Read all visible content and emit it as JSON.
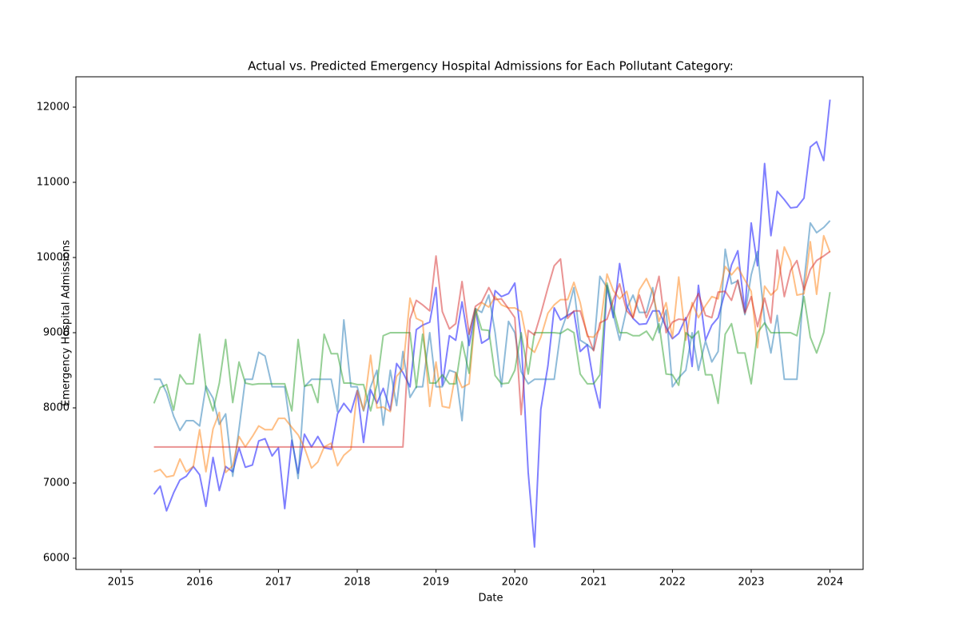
{
  "chart_data": {
    "type": "line",
    "title": "Actual vs. Predicted Emergency Hospital Admissions for Each Pollutant Category:",
    "xlabel": "Date",
    "ylabel": "Emergency Hospital Admissions",
    "x": [
      2015.42,
      2015.5,
      2015.58,
      2015.67,
      2015.75,
      2015.83,
      2015.92,
      2016,
      2016.08,
      2016.17,
      2016.25,
      2016.33,
      2016.42,
      2016.5,
      2016.58,
      2016.67,
      2016.75,
      2016.83,
      2016.92,
      2017,
      2017.08,
      2017.17,
      2017.25,
      2017.33,
      2017.42,
      2017.5,
      2017.58,
      2017.67,
      2017.75,
      2017.83,
      2017.92,
      2018,
      2018.08,
      2018.17,
      2018.25,
      2018.33,
      2018.42,
      2018.5,
      2018.58,
      2018.67,
      2018.75,
      2018.83,
      2018.92,
      2019,
      2019.08,
      2019.17,
      2019.25,
      2019.33,
      2019.42,
      2019.5,
      2019.58,
      2019.67,
      2019.75,
      2019.83,
      2019.92,
      2020,
      2020.08,
      2020.17,
      2020.25,
      2020.33,
      2020.42,
      2020.5,
      2020.58,
      2020.67,
      2020.75,
      2020.83,
      2020.92,
      2021,
      2021.08,
      2021.17,
      2021.25,
      2021.33,
      2021.42,
      2021.5,
      2021.58,
      2021.67,
      2021.75,
      2021.83,
      2021.92,
      2022,
      2022.08,
      2022.17,
      2022.25,
      2022.33,
      2022.42,
      2022.5,
      2022.58,
      2022.67,
      2022.75,
      2022.83,
      2022.92,
      2023,
      2023.08,
      2023.17,
      2023.25,
      2023.33,
      2023.42,
      2023.5,
      2023.58,
      2023.67,
      2023.75,
      2023.83,
      2023.92,
      2024
    ],
    "alpha": 0.5,
    "series": [
      {
        "color": "#0000ff",
        "values": [
          6850,
          6960,
          6630,
          6870,
          7040,
          7090,
          7220,
          7110,
          6690,
          7340,
          6900,
          7220,
          7150,
          7470,
          7210,
          7240,
          7560,
          7590,
          7360,
          7470,
          6660,
          7570,
          7130,
          7650,
          7480,
          7620,
          7470,
          7450,
          7920,
          8060,
          7940,
          8230,
          7540,
          8240,
          8060,
          8260,
          7970,
          8590,
          8470,
          8280,
          9040,
          9100,
          9140,
          9600,
          8300,
          8960,
          8900,
          9410,
          8830,
          9300,
          8860,
          8920,
          9560,
          9480,
          9520,
          9660,
          8930,
          7140,
          6150,
          7980,
          8560,
          9330,
          9170,
          9230,
          9280,
          8750,
          8840,
          8340,
          8000,
          9630,
          9200,
          9920,
          9360,
          9190,
          9110,
          9120,
          9290,
          9290,
          9070,
          8920,
          8990,
          9200,
          8550,
          9630,
          8900,
          9100,
          9200,
          9550,
          9900,
          10090,
          9280,
          10460,
          9890,
          11250,
          10290,
          10880,
          10770,
          10660,
          10670,
          10790,
          11470,
          11540,
          11290,
          12100
        ]
      },
      {
        "color": "#1f77b4",
        "values": [
          8380,
          8380,
          8200,
          7890,
          7700,
          7830,
          7830,
          7760,
          8290,
          8130,
          7780,
          7920,
          7090,
          7720,
          8380,
          8380,
          8740,
          8690,
          8280,
          8280,
          8280,
          7600,
          7060,
          8280,
          8380,
          8380,
          8380,
          8380,
          7950,
          9170,
          8280,
          8280,
          7960,
          8280,
          8500,
          7770,
          8500,
          8030,
          8750,
          8140,
          8280,
          8280,
          9000,
          8280,
          8280,
          8500,
          8470,
          7830,
          9000,
          9320,
          9270,
          9500,
          9000,
          8280,
          9150,
          9000,
          8480,
          8320,
          8380,
          8380,
          8380,
          8380,
          9000,
          9270,
          9600,
          8900,
          8840,
          8770,
          9750,
          9600,
          9240,
          8900,
          9320,
          9500,
          9270,
          9270,
          9600,
          9000,
          9300,
          8280,
          8400,
          8500,
          9000,
          8500,
          8890,
          8610,
          8750,
          10110,
          9650,
          9690,
          9240,
          9770,
          10080,
          9160,
          8730,
          9230,
          8380,
          8380,
          8380,
          9670,
          10460,
          10330,
          10400,
          10490
        ]
      },
      {
        "color": "#ff7f0e",
        "values": [
          7150,
          7180,
          7080,
          7100,
          7320,
          7150,
          7220,
          7710,
          7150,
          7720,
          7940,
          7140,
          7230,
          7620,
          7480,
          7620,
          7760,
          7710,
          7710,
          7860,
          7860,
          7740,
          7640,
          7470,
          7200,
          7280,
          7480,
          7530,
          7230,
          7370,
          7450,
          8230,
          7970,
          8700,
          8000,
          8010,
          7950,
          8420,
          8520,
          9460,
          9190,
          9150,
          8020,
          8610,
          8020,
          8000,
          8470,
          8270,
          8320,
          9250,
          9400,
          9340,
          9480,
          9370,
          9330,
          9330,
          9280,
          8810,
          8740,
          8940,
          9260,
          9370,
          9440,
          9440,
          9670,
          9400,
          8950,
          8940,
          9050,
          9780,
          9560,
          9450,
          9550,
          9200,
          9570,
          9720,
          9530,
          9150,
          9400,
          8930,
          9740,
          8900,
          9400,
          9200,
          9360,
          9480,
          9450,
          9880,
          9770,
          9870,
          9700,
          9550,
          8800,
          9620,
          9500,
          9580,
          10140,
          9950,
          9500,
          9520,
          10210,
          9510,
          10290,
          10070
        ]
      },
      {
        "color": "#2ca02c",
        "values": [
          8060,
          8270,
          8310,
          7970,
          8440,
          8320,
          8320,
          8980,
          8260,
          7960,
          8330,
          8910,
          8070,
          8610,
          8330,
          8310,
          8320,
          8320,
          8320,
          8320,
          8320,
          7960,
          8910,
          8290,
          8310,
          8070,
          8980,
          8720,
          8720,
          8330,
          8330,
          8310,
          8310,
          7960,
          8310,
          8960,
          9000,
          9000,
          9000,
          9000,
          8270,
          8980,
          8330,
          8330,
          8440,
          8320,
          8320,
          8880,
          8460,
          9320,
          9040,
          9030,
          8430,
          8320,
          8330,
          8500,
          9000,
          8450,
          9000,
          9000,
          9000,
          9000,
          8990,
          9050,
          9000,
          8450,
          8320,
          8320,
          8440,
          9660,
          9320,
          9000,
          9000,
          8960,
          8960,
          9020,
          8900,
          9120,
          8450,
          8440,
          8300,
          9000,
          8930,
          9020,
          8440,
          8440,
          8060,
          8980,
          9120,
          8730,
          8730,
          8320,
          9000,
          9130,
          9000,
          9000,
          9000,
          9000,
          8960,
          9480,
          8940,
          8730,
          9000,
          9540
        ]
      },
      {
        "color": "#d62728",
        "values": [
          7480,
          7480,
          7480,
          7480,
          7480,
          7480,
          7480,
          7480,
          7480,
          7480,
          7480,
          7480,
          7480,
          7480,
          7480,
          7480,
          7480,
          7480,
          7480,
          7480,
          7480,
          7480,
          7480,
          7480,
          7480,
          7480,
          7480,
          7480,
          7480,
          7480,
          7480,
          7480,
          7480,
          7480,
          7480,
          7480,
          7480,
          7480,
          7480,
          9180,
          9430,
          9370,
          9290,
          10020,
          9280,
          9050,
          9120,
          9680,
          8980,
          9350,
          9410,
          9600,
          9440,
          9450,
          9320,
          9200,
          7910,
          9030,
          8970,
          9250,
          9600,
          9890,
          9980,
          9190,
          9290,
          9290,
          8980,
          8760,
          9130,
          9180,
          9440,
          9650,
          9290,
          9200,
          9500,
          9200,
          9410,
          9750,
          9000,
          9140,
          9180,
          9170,
          9350,
          9520,
          9230,
          9200,
          9540,
          9550,
          9430,
          9700,
          9260,
          9480,
          9080,
          9460,
          9130,
          10100,
          9480,
          9830,
          9960,
          9570,
          9840,
          9960,
          10020,
          10080
        ]
      }
    ],
    "xlim": [
      2014.43,
      2024.42
    ],
    "xticks": [
      2015,
      2016,
      2017,
      2018,
      2019,
      2020,
      2021,
      2022,
      2023,
      2024
    ],
    "ylim": [
      5851,
      12404
    ],
    "yticks": [
      6000,
      7000,
      8000,
      9000,
      10000,
      11000,
      12000
    ],
    "grid": false
  }
}
